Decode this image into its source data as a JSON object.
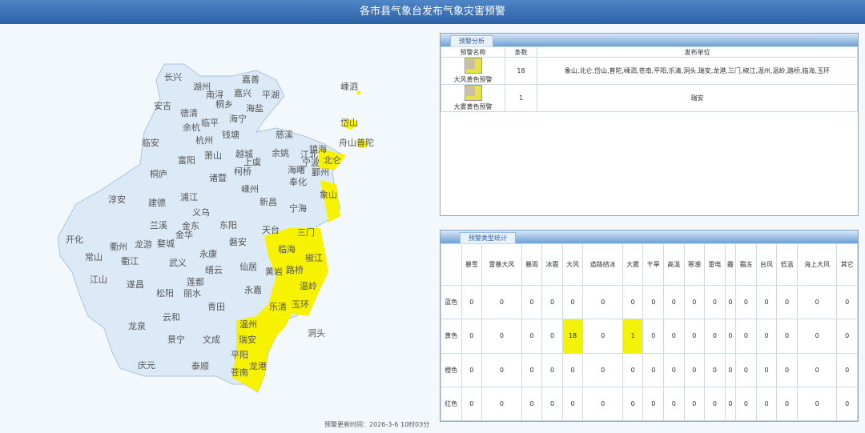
{
  "header": {
    "title": "各市县气象台发布气象灾害预警"
  },
  "map": {
    "colors": {
      "none": "#dceaf7",
      "yellow": "#f7f200"
    },
    "labels": [
      "长兴",
      "湖州",
      "南浔",
      "嘉善",
      "嘉兴",
      "平湖",
      "桐乡",
      "海盐",
      "安吉",
      "德清",
      "临平",
      "海宁",
      "余杭",
      "杭州",
      "钱塘",
      "慈溪",
      "临安",
      "萧山",
      "越城",
      "余姚",
      "上虞",
      "镇海",
      "江北",
      "宁波",
      "北仑",
      "富阳",
      "桐庐",
      "诸暨",
      "柯桥",
      "海曙",
      "鄞州",
      "奉化",
      "嵊泗",
      "岱山",
      "舟山普陀",
      "象山",
      "淳安",
      "建德",
      "浦江",
      "嵊州",
      "新昌",
      "宁海",
      "义乌",
      "兰溪",
      "金东",
      "金华",
      "东阳",
      "天台",
      "三门",
      "开化",
      "衢州",
      "龙游",
      "婺城",
      "磐安",
      "临海",
      "椒江",
      "常山",
      "衢江",
      "武义",
      "永康",
      "缙云",
      "仙居",
      "黄岩",
      "路桥",
      "江山",
      "遂昌",
      "莲都",
      "丽水",
      "温岭",
      "松阳",
      "永嘉",
      "青田",
      "乐清",
      "玉环",
      "云和",
      "龙泉",
      "温州",
      "洞头",
      "景宁",
      "文成",
      "瑞安",
      "平阳",
      "龙港",
      "庆元",
      "泰顺",
      "苍南"
    ]
  },
  "analysis": {
    "tab": "预警分析",
    "headers": [
      "预警名称",
      "条数",
      "发布单位"
    ],
    "rows": [
      {
        "name": "大风黄色预警",
        "count": "18",
        "units": "象山,北仑,岱山,普陀,嵊泗,苍南,平阳,乐清,洞头,瑞安,龙港,三门,椒江,温州,温岭,路桥,临海,玉环"
      },
      {
        "name": "大雾黄色预警",
        "count": "1",
        "units": "瑞安"
      }
    ]
  },
  "stats": {
    "tab": "预警类型统计",
    "columns": [
      "暴雪",
      "雷暴大风",
      "暴雨",
      "冰雹",
      "大风",
      "道路结冰",
      "大雾",
      "干旱",
      "高温",
      "寒潮",
      "雷电",
      "霾",
      "霜冻",
      "台风",
      "低温",
      "海上大风",
      "其它"
    ],
    "rows": [
      {
        "level": "蓝色",
        "values": [
          "0",
          "0",
          "0",
          "0",
          "0",
          "0",
          "0",
          "0",
          "0",
          "0",
          "0",
          "0",
          "0",
          "0",
          "0",
          "0",
          "0"
        ]
      },
      {
        "level": "黄色",
        "values": [
          "0",
          "0",
          "0",
          "0",
          "18",
          "0",
          "1",
          "0",
          "0",
          "0",
          "0",
          "0",
          "0",
          "0",
          "0",
          "0",
          "0"
        ]
      },
      {
        "level": "橙色",
        "values": [
          "0",
          "0",
          "0",
          "0",
          "0",
          "0",
          "0",
          "0",
          "0",
          "0",
          "0",
          "0",
          "0",
          "0",
          "0",
          "0",
          "0"
        ]
      },
      {
        "level": "红色",
        "values": [
          "0",
          "0",
          "0",
          "0",
          "0",
          "0",
          "0",
          "0",
          "0",
          "0",
          "0",
          "0",
          "0",
          "0",
          "0",
          "0",
          "0"
        ]
      }
    ]
  },
  "footer": {
    "update_time": "预警更新时间：2026-3-6 10时03分"
  }
}
